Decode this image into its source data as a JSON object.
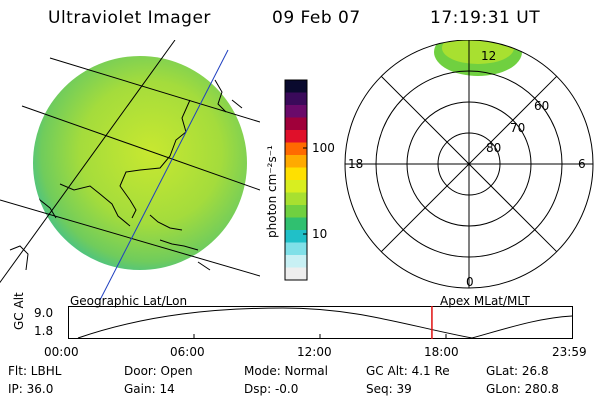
{
  "header": {
    "title": "Ultraviolet Imager",
    "date": "09 Feb 07",
    "time": "17:19:31 UT"
  },
  "colorbar": {
    "label": "photon cm⁻²s⁻¹",
    "tick_100": "100",
    "tick_10": "10",
    "colors": [
      "#0a0a2e",
      "#3a0a5a",
      "#6a0a6a",
      "#a0003a",
      "#e0102a",
      "#ff6a00",
      "#ffaa00",
      "#ffe000",
      "#d8ee20",
      "#a8e030",
      "#70d040",
      "#30c070",
      "#20c0c8",
      "#80e0e8",
      "#c8f0f4",
      "#eeeeee"
    ]
  },
  "polar": {
    "lat_labels": [
      "60",
      "70",
      "80"
    ],
    "mlt_labels": {
      "top": "12",
      "left": "18",
      "right": "6",
      "bottom": "0"
    }
  },
  "timeline": {
    "ylabel": "GC Alt",
    "y_top": "9.0",
    "y_bottom": "1.8",
    "left_label": "Geographic Lat/Lon",
    "right_label": "Apex  MLat/MLT",
    "x_ticks": [
      "00:00",
      "06:00",
      "12:00",
      "18:00",
      "23:59"
    ],
    "marker_time_hours": 17.33
  },
  "info": {
    "row1": [
      "Flt: LBHL",
      "Door: Open",
      "Mode: Normal",
      "GC Alt: 4.1 Re",
      "GLat:  26.8"
    ],
    "row2": [
      "IP: 36.0",
      "Gain: 14",
      "Dsp:   -0.0",
      "Seq: 39",
      "GLon: 280.8"
    ]
  }
}
